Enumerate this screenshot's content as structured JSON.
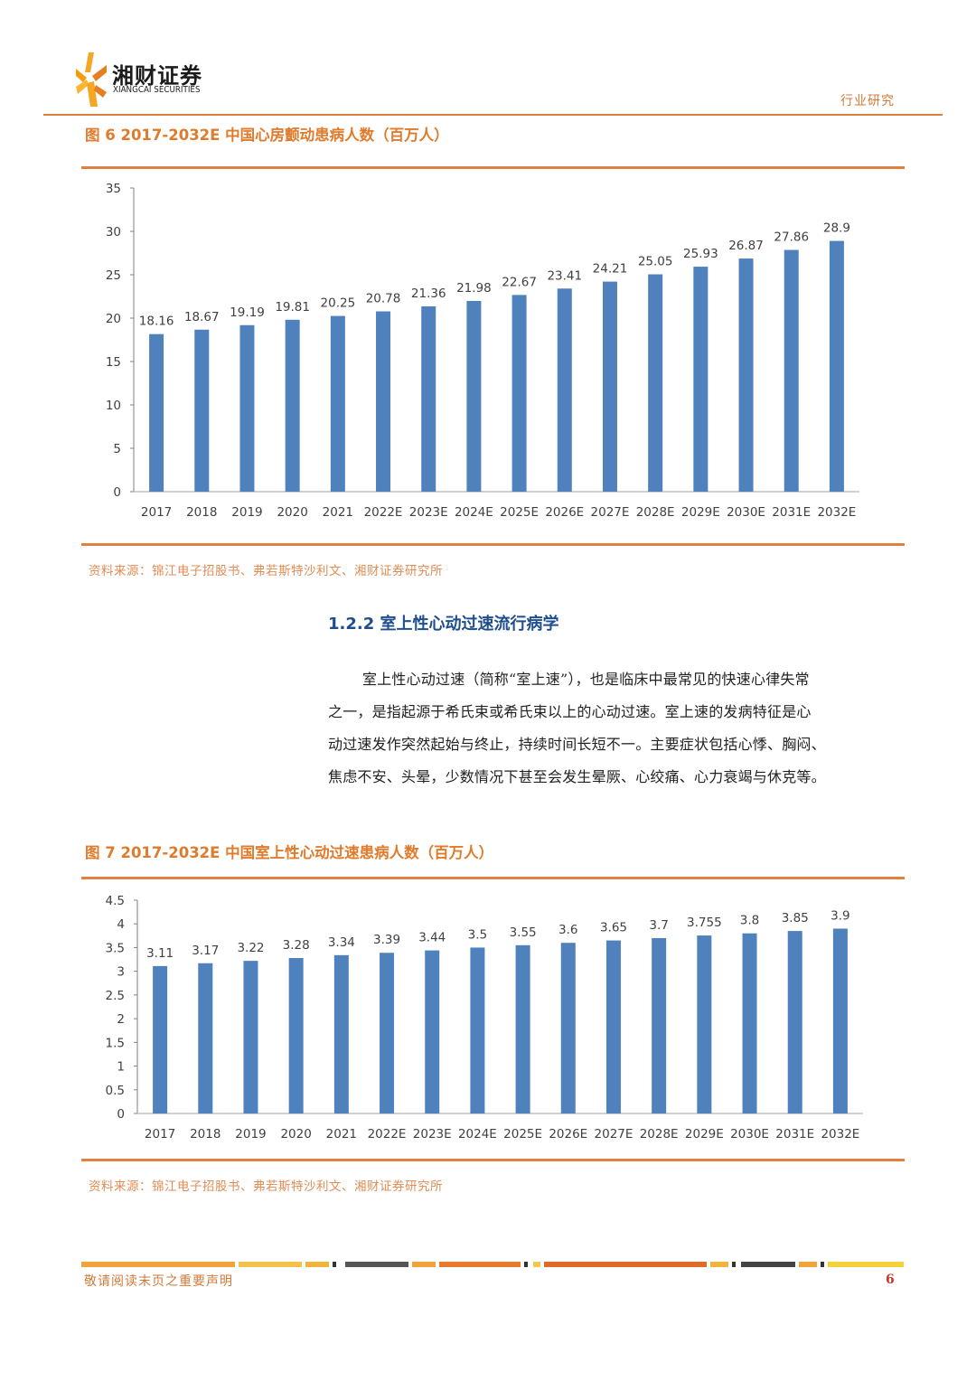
{
  "header": {
    "logo_cn": "湘财证券",
    "logo_en": "XIANGCAI SECURITIES",
    "category": "行业研究"
  },
  "figure6": {
    "title": "图 6 2017-2032E 中国心房颤动患病人数（百万人）",
    "source": "资料来源：锦江电子招股书、弗若斯特沙利文、湘财证券研究所"
  },
  "section": {
    "heading": "1.2.2 室上性心动过速流行病学",
    "paragraph_lines": [
      "室上性心动过速（简称“室上速”），也是临床中最常见的快速心律失常",
      "之一，是指起源于希氏束或希氏束以上的心动过速。室上速的发病特征是心",
      "动过速发作突然起始与终止，持续时间长短不一。主要症状包括心悸、胸闷、",
      "焦虑不安、头晕，少数情况下甚至会发生晕厥、心绞痛、心力衰竭与休克等。"
    ]
  },
  "figure7": {
    "title": "图 7 2017-2032E 中国室上性心动过速患病人数（百万人）",
    "source": "资料来源：锦江电子招股书、弗若斯特沙利文、湘财证券研究所"
  },
  "footer": {
    "notice": "敬请阅读末页之重要声明",
    "page": "6"
  },
  "colors": {
    "bar": "#4f81bd",
    "accent": "#e0823d",
    "heading": "#1f4e8c"
  },
  "chart_data": [
    {
      "type": "bar",
      "categories": [
        "2017",
        "2018",
        "2019",
        "2020",
        "2021",
        "2022E",
        "2023E",
        "2024E",
        "2025E",
        "2026E",
        "2027E",
        "2028E",
        "2029E",
        "2030E",
        "2031E",
        "2032E"
      ],
      "values": [
        18.16,
        18.67,
        19.19,
        19.81,
        20.25,
        20.78,
        21.36,
        21.98,
        22.67,
        23.41,
        24.21,
        25.05,
        25.93,
        26.87,
        27.86,
        28.9
      ],
      "data_labels": [
        "18.16",
        "18.67",
        "19.19",
        "19.81",
        "20.25",
        "20.78",
        "21.36",
        "21.98",
        "22.67",
        "23.41",
        "24.21",
        "25.05",
        "25.93",
        "26.87",
        "27.86",
        "28.9"
      ],
      "yticks": [
        "0",
        "5",
        "10",
        "15",
        "20",
        "25",
        "30",
        "35"
      ],
      "ylim": [
        0,
        35
      ],
      "tick_step": 5,
      "grid": false,
      "legend": "none"
    },
    {
      "type": "bar",
      "categories": [
        "2017",
        "2018",
        "2019",
        "2020",
        "2021",
        "2022E",
        "2023E",
        "2024E",
        "2025E",
        "2026E",
        "2027E",
        "2028E",
        "2029E",
        "2030E",
        "2031E",
        "2032E"
      ],
      "values": [
        3.11,
        3.17,
        3.22,
        3.28,
        3.34,
        3.39,
        3.44,
        3.5,
        3.55,
        3.6,
        3.65,
        3.7,
        3.755,
        3.8,
        3.85,
        3.9
      ],
      "data_labels": [
        "3.11",
        "3.17",
        "3.22",
        "3.28",
        "3.34",
        "3.39",
        "3.44",
        "3.5",
        "3.55",
        "3.6",
        "3.65",
        "3.7",
        "3.755",
        "3.8",
        "3.85",
        "3.9"
      ],
      "yticks": [
        "0",
        "0.5",
        "1",
        "1.5",
        "2",
        "2.5",
        "3",
        "3.5",
        "4",
        "4.5"
      ],
      "ylim": [
        0,
        4.5
      ],
      "tick_step": 0.5,
      "grid": false,
      "legend": "none"
    }
  ]
}
